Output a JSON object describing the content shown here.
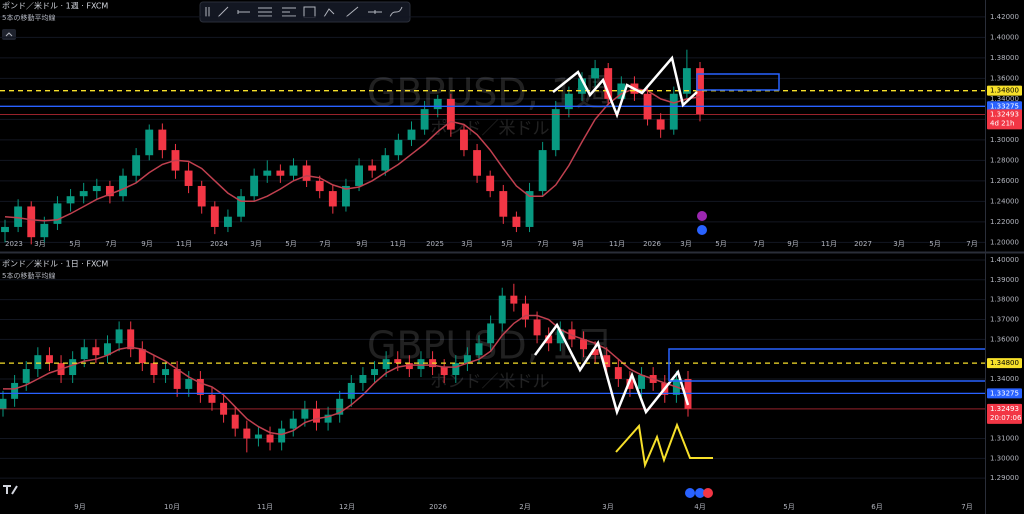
{
  "chart_data": [
    {
      "type": "candlestick",
      "title": "ポンド／米ドル · 1週 · FXCM",
      "indicator": "5本の移動平均線",
      "watermark": "GBPUSD, 1週",
      "watermark_sub": "ポンド／米ドル",
      "up_color": "#089981",
      "down_color": "#f23645",
      "ma_color": "#c0404f",
      "ylim": [
        1.1925,
        1.4365
      ],
      "yticks": [
        {
          "value": 1.42,
          "label": "1.42000"
        },
        {
          "value": 1.4,
          "label": "1.40000"
        },
        {
          "value": 1.38,
          "label": "1.38000"
        },
        {
          "value": 1.36,
          "label": "1.36000"
        },
        {
          "value": 1.34,
          "label": "1.34000"
        },
        {
          "value": 1.32,
          "label": "1.32000"
        },
        {
          "value": 1.3,
          "label": "1.30000"
        },
        {
          "value": 1.28,
          "label": "1.28000"
        },
        {
          "value": 1.26,
          "label": "1.26000"
        },
        {
          "value": 1.24,
          "label": "1.24000"
        },
        {
          "value": 1.22,
          "label": "1.22000"
        },
        {
          "value": 1.2,
          "label": "1.20000"
        }
      ],
      "xlabels": [
        "2023",
        "3月",
        "5月",
        "7月",
        "9月",
        "11月",
        "2024",
        "3月",
        "5月",
        "7月",
        "9月",
        "11月",
        "2025",
        "3月",
        "5月",
        "7月",
        "9月",
        "11月",
        "2026",
        "3月",
        "5月",
        "7月",
        "9月",
        "11月",
        "2027",
        "3月",
        "5月",
        "7月"
      ],
      "levels": [
        {
          "value": 1.348,
          "label": "1.34800",
          "color": "#f7e02a",
          "style": "dashed"
        },
        {
          "value": 1.33275,
          "label": "1.33275",
          "color": "#2962ff",
          "style": "solid"
        },
        {
          "value": 1.32493,
          "label": "1.32493",
          "color": "#f23645",
          "style": "thin",
          "countdown": "4d 21h"
        }
      ],
      "candles": [
        [
          1.21,
          1.222,
          1.2,
          1.215
        ],
        [
          1.215,
          1.242,
          1.21,
          1.235
        ],
        [
          1.235,
          1.24,
          1.198,
          1.205
        ],
        [
          1.205,
          1.225,
          1.2,
          1.218
        ],
        [
          1.218,
          1.245,
          1.212,
          1.238
        ],
        [
          1.238,
          1.252,
          1.23,
          1.245
        ],
        [
          1.245,
          1.258,
          1.238,
          1.25
        ],
        [
          1.25,
          1.262,
          1.242,
          1.255
        ],
        [
          1.255,
          1.26,
          1.238,
          1.245
        ],
        [
          1.245,
          1.272,
          1.24,
          1.265
        ],
        [
          1.265,
          1.292,
          1.258,
          1.285
        ],
        [
          1.285,
          1.315,
          1.28,
          1.31
        ],
        [
          1.31,
          1.316,
          1.282,
          1.29
        ],
        [
          1.29,
          1.296,
          1.262,
          1.27
        ],
        [
          1.27,
          1.278,
          1.248,
          1.255
        ],
        [
          1.255,
          1.26,
          1.228,
          1.235
        ],
        [
          1.235,
          1.24,
          1.208,
          1.215
        ],
        [
          1.215,
          1.232,
          1.21,
          1.225
        ],
        [
          1.225,
          1.252,
          1.22,
          1.245
        ],
        [
          1.245,
          1.272,
          1.24,
          1.265
        ],
        [
          1.265,
          1.28,
          1.258,
          1.27
        ],
        [
          1.27,
          1.276,
          1.258,
          1.265
        ],
        [
          1.265,
          1.282,
          1.26,
          1.275
        ],
        [
          1.275,
          1.28,
          1.254,
          1.26
        ],
        [
          1.26,
          1.265,
          1.243,
          1.25
        ],
        [
          1.25,
          1.256,
          1.228,
          1.235
        ],
        [
          1.235,
          1.262,
          1.23,
          1.255
        ],
        [
          1.255,
          1.282,
          1.25,
          1.275
        ],
        [
          1.275,
          1.281,
          1.263,
          1.27
        ],
        [
          1.27,
          1.292,
          1.265,
          1.285
        ],
        [
          1.285,
          1.306,
          1.28,
          1.3
        ],
        [
          1.3,
          1.318,
          1.294,
          1.31
        ],
        [
          1.31,
          1.338,
          1.305,
          1.33
        ],
        [
          1.33,
          1.344,
          1.322,
          1.34
        ],
        [
          1.34,
          1.345,
          1.303,
          1.31
        ],
        [
          1.31,
          1.315,
          1.284,
          1.29
        ],
        [
          1.29,
          1.296,
          1.258,
          1.265
        ],
        [
          1.265,
          1.27,
          1.244,
          1.25
        ],
        [
          1.25,
          1.256,
          1.218,
          1.225
        ],
        [
          1.225,
          1.23,
          1.21,
          1.215
        ],
        [
          1.215,
          1.258,
          1.21,
          1.25
        ],
        [
          1.25,
          1.298,
          1.245,
          1.29
        ],
        [
          1.29,
          1.338,
          1.284,
          1.33
        ],
        [
          1.33,
          1.352,
          1.322,
          1.345
        ],
        [
          1.345,
          1.366,
          1.338,
          1.36
        ],
        [
          1.36,
          1.378,
          1.352,
          1.37
        ],
        [
          1.37,
          1.375,
          1.334,
          1.34
        ],
        [
          1.34,
          1.362,
          1.334,
          1.355
        ],
        [
          1.355,
          1.362,
          1.338,
          1.345
        ],
        [
          1.345,
          1.35,
          1.314,
          1.32
        ],
        [
          1.32,
          1.326,
          1.302,
          1.31
        ],
        [
          1.31,
          1.352,
          1.305,
          1.345
        ],
        [
          1.345,
          1.388,
          1.34,
          1.37
        ],
        [
          1.37,
          1.376,
          1.318,
          1.325
        ]
      ],
      "ma": [
        1.225,
        1.224,
        1.222,
        1.221,
        1.222,
        1.228,
        1.235,
        1.242,
        1.247,
        1.252,
        1.258,
        1.268,
        1.276,
        1.28,
        1.279,
        1.272,
        1.26,
        1.248,
        1.24,
        1.24,
        1.245,
        1.252,
        1.26,
        1.265,
        1.263,
        1.256,
        1.252,
        1.254,
        1.26,
        1.268,
        1.276,
        1.286,
        1.296,
        1.308,
        1.318,
        1.315,
        1.305,
        1.29,
        1.272,
        1.255,
        1.245,
        1.245,
        1.256,
        1.275,
        1.298,
        1.32,
        1.335,
        1.345,
        1.35,
        1.348,
        1.34,
        1.336,
        1.34,
        1.342
      ]
    },
    {
      "type": "candlestick",
      "title": "ポンド／米ドル · 1日 · FXCM",
      "indicator": "5本の移動平均線",
      "watermark": "GBPUSD, 1日",
      "watermark_sub": "ポンド／米ドル",
      "up_color": "#089981",
      "down_color": "#f23645",
      "ma_color": "#c0404f",
      "ylim": [
        1.2785,
        1.4025
      ],
      "yticks": [
        {
          "value": 1.4,
          "label": "1.40000"
        },
        {
          "value": 1.39,
          "label": "1.39000"
        },
        {
          "value": 1.38,
          "label": "1.38000"
        },
        {
          "value": 1.37,
          "label": "1.37000"
        },
        {
          "value": 1.36,
          "label": "1.36000"
        },
        {
          "value": 1.34,
          "label": "1.34000"
        },
        {
          "value": 1.31,
          "label": "1.31000"
        },
        {
          "value": 1.3,
          "label": "1.30000"
        },
        {
          "value": 1.29,
          "label": "1.29000"
        }
      ],
      "xlabels": [
        "9月",
        "10月",
        "11月",
        "12月",
        "2026",
        "2月",
        "3月",
        "4月",
        "5月",
        "6月",
        "7月"
      ],
      "levels": [
        {
          "value": 1.348,
          "label": "1.34800",
          "color": "#f7e02a",
          "style": "dashed"
        },
        {
          "value": 1.33275,
          "label": "1.33275",
          "color": "#2962ff",
          "style": "solid"
        },
        {
          "value": 1.32493,
          "label": "1.32493",
          "color": "#f23645",
          "style": "thin",
          "countdown": "20:07:06"
        }
      ],
      "candles": [
        [
          1.325,
          1.334,
          1.321,
          1.33
        ],
        [
          1.33,
          1.342,
          1.326,
          1.338
        ],
        [
          1.338,
          1.349,
          1.334,
          1.345
        ],
        [
          1.345,
          1.356,
          1.341,
          1.352
        ],
        [
          1.352,
          1.356,
          1.344,
          1.348
        ],
        [
          1.348,
          1.352,
          1.338,
          1.342
        ],
        [
          1.342,
          1.354,
          1.338,
          1.35
        ],
        [
          1.35,
          1.36,
          1.346,
          1.356
        ],
        [
          1.356,
          1.36,
          1.348,
          1.352
        ],
        [
          1.352,
          1.362,
          1.348,
          1.358
        ],
        [
          1.358,
          1.369,
          1.354,
          1.365
        ],
        [
          1.365,
          1.369,
          1.351,
          1.355
        ],
        [
          1.355,
          1.359,
          1.344,
          1.348
        ],
        [
          1.348,
          1.352,
          1.338,
          1.342
        ],
        [
          1.342,
          1.349,
          1.338,
          1.345
        ],
        [
          1.345,
          1.349,
          1.331,
          1.335
        ],
        [
          1.335,
          1.344,
          1.331,
          1.34
        ],
        [
          1.34,
          1.344,
          1.328,
          1.332
        ],
        [
          1.332,
          1.336,
          1.324,
          1.328
        ],
        [
          1.328,
          1.332,
          1.318,
          1.322
        ],
        [
          1.322,
          1.326,
          1.311,
          1.315
        ],
        [
          1.315,
          1.319,
          1.303,
          1.31
        ],
        [
          1.31,
          1.316,
          1.306,
          1.312
        ],
        [
          1.312,
          1.316,
          1.304,
          1.308
        ],
        [
          1.308,
          1.319,
          1.304,
          1.315
        ],
        [
          1.315,
          1.324,
          1.311,
          1.32
        ],
        [
          1.32,
          1.329,
          1.316,
          1.325
        ],
        [
          1.325,
          1.329,
          1.314,
          1.318
        ],
        [
          1.318,
          1.326,
          1.314,
          1.322
        ],
        [
          1.322,
          1.334,
          1.318,
          1.33
        ],
        [
          1.33,
          1.342,
          1.326,
          1.338
        ],
        [
          1.338,
          1.346,
          1.334,
          1.342
        ],
        [
          1.342,
          1.349,
          1.338,
          1.345
        ],
        [
          1.345,
          1.354,
          1.341,
          1.35
        ],
        [
          1.35,
          1.354,
          1.344,
          1.348
        ],
        [
          1.348,
          1.352,
          1.341,
          1.345
        ],
        [
          1.345,
          1.354,
          1.341,
          1.35
        ],
        [
          1.35,
          1.354,
          1.342,
          1.346
        ],
        [
          1.346,
          1.35,
          1.338,
          1.342
        ],
        [
          1.342,
          1.352,
          1.338,
          1.348
        ],
        [
          1.348,
          1.356,
          1.344,
          1.352
        ],
        [
          1.352,
          1.362,
          1.348,
          1.358
        ],
        [
          1.358,
          1.372,
          1.354,
          1.368
        ],
        [
          1.368,
          1.386,
          1.364,
          1.382
        ],
        [
          1.382,
          1.388,
          1.374,
          1.378
        ],
        [
          1.378,
          1.382,
          1.366,
          1.37
        ],
        [
          1.37,
          1.374,
          1.358,
          1.362
        ],
        [
          1.362,
          1.366,
          1.354,
          1.358
        ],
        [
          1.358,
          1.369,
          1.354,
          1.365
        ],
        [
          1.365,
          1.369,
          1.356,
          1.36
        ],
        [
          1.36,
          1.364,
          1.351,
          1.355
        ],
        [
          1.355,
          1.359,
          1.348,
          1.352
        ],
        [
          1.352,
          1.356,
          1.342,
          1.346
        ],
        [
          1.346,
          1.35,
          1.336,
          1.34
        ],
        [
          1.34,
          1.344,
          1.331,
          1.335
        ],
        [
          1.335,
          1.346,
          1.331,
          1.342
        ],
        [
          1.342,
          1.346,
          1.334,
          1.338
        ],
        [
          1.338,
          1.342,
          1.328,
          1.332
        ],
        [
          1.332,
          1.344,
          1.328,
          1.34
        ],
        [
          1.34,
          1.344,
          1.321,
          1.325
        ]
      ],
      "ma": [
        1.335,
        1.335,
        1.337,
        1.34,
        1.343,
        1.345,
        1.347,
        1.349,
        1.35,
        1.352,
        1.355,
        1.356,
        1.355,
        1.352,
        1.349,
        1.345,
        1.341,
        1.338,
        1.336,
        1.332,
        1.326,
        1.32,
        1.316,
        1.313,
        1.312,
        1.314,
        1.318,
        1.32,
        1.321,
        1.323,
        1.327,
        1.332,
        1.338,
        1.343,
        1.346,
        1.347,
        1.347,
        1.347,
        1.346,
        1.346,
        1.348,
        1.35,
        1.354,
        1.362,
        1.368,
        1.372,
        1.372,
        1.37,
        1.365,
        1.362,
        1.36,
        1.358,
        1.355,
        1.35,
        1.345,
        1.342,
        1.34,
        1.338,
        1.336,
        1.334
      ]
    }
  ]
}
